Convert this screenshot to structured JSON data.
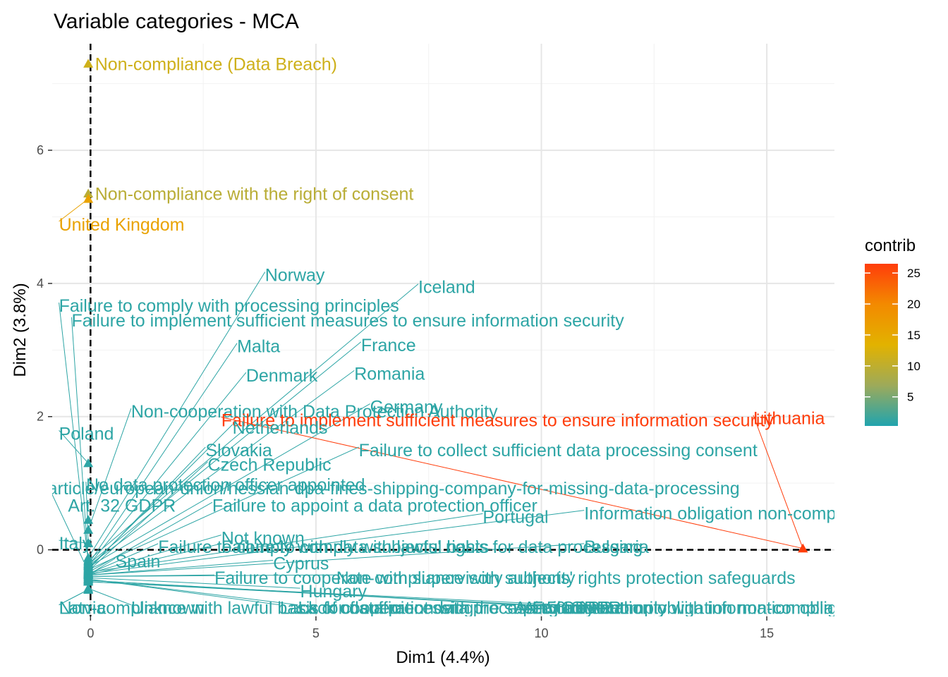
{
  "chart_data": {
    "type": "scatter",
    "title": "Variable categories - MCA",
    "xlabel": "Dim1 (4.4%)",
    "ylabel": "Dim2 (3.8%)",
    "xlim": [
      -0.85,
      16.5
    ],
    "ylim": [
      -1.0,
      7.6
    ],
    "xticks": [
      0,
      5,
      10,
      15
    ],
    "yticks": [
      0,
      2,
      4,
      6
    ],
    "grid": true,
    "legend": {
      "title": "contrib",
      "position": "right",
      "ticks": [
        5,
        10,
        15,
        20,
        25
      ],
      "range": [
        0.3,
        26.5
      ],
      "colors": [
        "#20A4AE",
        "#9DAA5A",
        "#E2B200",
        "#F38A00",
        "#FF3D0B"
      ]
    },
    "ref_lines": {
      "x": 0,
      "y": 0
    },
    "points": [
      {
        "label": "Non-compliance (Data Breach)",
        "x": -0.05,
        "y": 7.3,
        "lx": 0.1,
        "ly": 7.3,
        "contrib": 11.5
      },
      {
        "label": "Non-compliance with the right of consent",
        "x": -0.05,
        "y": 5.35,
        "lx": 0.1,
        "ly": 5.35,
        "contrib": 9.5
      },
      {
        "label": "United Kingdom",
        "x": -0.05,
        "y": 5.27,
        "lx": -0.7,
        "ly": 4.89,
        "contrib": 16.0
      },
      {
        "label": "Norway",
        "x": -0.05,
        "y": -0.12,
        "lx": 3.87,
        "ly": 4.13,
        "contrib": 1.0
      },
      {
        "label": "Iceland",
        "x": -0.05,
        "y": -0.16,
        "lx": 7.27,
        "ly": 3.95,
        "contrib": 1.0
      },
      {
        "label": "Failure to comply with processing principles",
        "x": -0.05,
        "y": -0.18,
        "lx": -0.7,
        "ly": 3.67,
        "contrib": 1.0
      },
      {
        "label": "Failure to implement sufficient measures to ensure information security",
        "x": -0.05,
        "y": -0.2,
        "lx": -0.42,
        "ly": 3.45,
        "contrib": 1.0
      },
      {
        "label": "Malta",
        "x": -0.05,
        "y": -0.22,
        "lx": 3.25,
        "ly": 3.06,
        "contrib": 1.0
      },
      {
        "label": "France",
        "x": -0.05,
        "y": -0.22,
        "lx": 6.0,
        "ly": 3.08,
        "contrib": 1.0
      },
      {
        "label": "Denmark",
        "x": -0.05,
        "y": -0.24,
        "lx": 3.45,
        "ly": 2.62,
        "contrib": 1.0
      },
      {
        "label": "Romania",
        "x": -0.05,
        "y": -0.24,
        "lx": 5.85,
        "ly": 2.65,
        "contrib": 1.0
      },
      {
        "label": "Non-cooperation with Data Protection Authority",
        "x": -0.05,
        "y": 0.3,
        "lx": 0.9,
        "ly": 2.08,
        "contrib": 1.0
      },
      {
        "label": "Germany",
        "x": -0.05,
        "y": -0.26,
        "lx": 6.2,
        "ly": 2.15,
        "contrib": 1.0
      },
      {
        "label": "Failure to implement sufficient measures to ensure information security",
        "x": 15.8,
        "y": 0.02,
        "lx": 2.9,
        "ly": 1.95,
        "contrib": 26.5
      },
      {
        "label": "Lithuania",
        "x": 15.8,
        "y": 0.02,
        "lx": 14.7,
        "ly": 1.98,
        "contrib": 26.5
      },
      {
        "label": "Netherlands",
        "x": -0.05,
        "y": -0.28,
        "lx": 3.15,
        "ly": 1.84,
        "contrib": 1.0
      },
      {
        "label": "Poland",
        "x": -0.05,
        "y": 1.3,
        "lx": -0.7,
        "ly": 1.75,
        "contrib": 1.0
      },
      {
        "label": "Slovakia",
        "x": -0.05,
        "y": -0.3,
        "lx": 2.55,
        "ly": 1.5,
        "contrib": 1.0
      },
      {
        "label": "Failure to collect sufficient data processing consent",
        "x": -0.05,
        "y": -0.3,
        "lx": 5.95,
        "ly": 1.5,
        "contrib": 1.0
      },
      {
        "label": "Czech Republic",
        "x": -0.05,
        "y": -0.32,
        "lx": 2.6,
        "ly": 1.28,
        "contrib": 1.0
      },
      {
        "label": "No data protection officer appointed",
        "x": -0.05,
        "y": 0.1,
        "lx": -0.1,
        "ly": 0.98,
        "contrib": 1.0
      },
      {
        "label": "article/european-union/hessian-dpa-fines-shipping-company-for-missing-data-processing",
        "x": -0.05,
        "y": -0.32,
        "lx": -0.95,
        "ly": 0.93,
        "contrib": 1.0
      },
      {
        "label": "Art. 32 GDPR",
        "x": -0.05,
        "y": 0.45,
        "lx": -0.5,
        "ly": 0.67,
        "contrib": 1.0
      },
      {
        "label": "Failure to appoint a data protection officer",
        "x": -0.05,
        "y": -0.34,
        "lx": 2.7,
        "ly": 0.67,
        "contrib": 1.0
      },
      {
        "label": "Portugal",
        "x": -0.05,
        "y": -0.34,
        "lx": 8.7,
        "ly": 0.5,
        "contrib": 1.0
      },
      {
        "label": "Information obligation non-compliance",
        "x": -0.05,
        "y": -0.36,
        "lx": 10.95,
        "ly": 0.55,
        "contrib": 1.0
      },
      {
        "label": "Not known",
        "x": -0.05,
        "y": -0.36,
        "lx": 2.9,
        "ly": 0.18,
        "contrib": 1.0
      },
      {
        "label": "Italy",
        "x": -0.05,
        "y": 0.1,
        "lx": -0.7,
        "ly": 0.1,
        "contrib": 1.0
      },
      {
        "label": "Failure to comply with data subjects' rights",
        "x": -0.05,
        "y": -0.36,
        "lx": 1.5,
        "ly": 0.05,
        "contrib": 1.0
      },
      {
        "label": "Failure to comply with lawful basis for data processing",
        "x": -0.05,
        "y": -0.38,
        "lx": 2.9,
        "ly": 0.05,
        "contrib": 1.0
      },
      {
        "label": "Bulgaria",
        "x": -0.05,
        "y": -0.38,
        "lx": 10.95,
        "ly": 0.05,
        "contrib": 1.0
      },
      {
        "label": "Spain",
        "x": -0.05,
        "y": -0.38,
        "lx": 0.55,
        "ly": -0.17,
        "contrib": 1.0
      },
      {
        "label": "Cyprus",
        "x": -0.05,
        "y": -0.38,
        "lx": 4.05,
        "ly": -0.2,
        "contrib": 1.0
      },
      {
        "label": "Failure to cooperate with supervisory authority",
        "x": -0.05,
        "y": -0.4,
        "lx": 2.75,
        "ly": -0.42,
        "contrib": 1.0
      },
      {
        "label": "Non-compliance with subjects' rights protection safeguards",
        "x": -0.05,
        "y": -0.4,
        "lx": 5.45,
        "ly": -0.42,
        "contrib": 1.0
      },
      {
        "label": "Hungary",
        "x": -0.05,
        "y": -0.42,
        "lx": 4.65,
        "ly": -0.62,
        "contrib": 1.0
      },
      {
        "label": "Latvia",
        "x": -0.05,
        "y": -0.6,
        "lx": -0.7,
        "ly": -0.87,
        "contrib": 1.0
      },
      {
        "label": "Non-compliance with lawful basis for data processing",
        "x": -0.05,
        "y": -0.6,
        "lx": -0.7,
        "ly": -0.87,
        "contrib": 1.0
      },
      {
        "label": "Unknown",
        "x": -0.05,
        "y": -0.58,
        "lx": 0.9,
        "ly": -0.87,
        "contrib": 1.0
      },
      {
        "label": "Lack of cooperation with the supervisory authority",
        "x": -0.05,
        "y": -0.44,
        "lx": 4.2,
        "ly": -0.87,
        "contrib": 1.0
      },
      {
        "label": "Lack of sufficient data processing consent",
        "x": -0.05,
        "y": -0.44,
        "lx": 4.6,
        "ly": -0.87,
        "contrib": 1.0
      },
      {
        "label": "Art. 5 GDPR",
        "x": -0.05,
        "y": -0.46,
        "lx": 9.4,
        "ly": -0.87,
        "contrib": 1.0
      },
      {
        "label": "Art. 6 GDPR",
        "x": -0.05,
        "y": -0.46,
        "lx": 9.6,
        "ly": -0.87,
        "contrib": 1.0
      },
      {
        "label": "Failure to comply with information obligation",
        "x": -0.05,
        "y": -0.48,
        "lx": 9.8,
        "ly": -0.87,
        "contrib": 1.0
      },
      {
        "label": "Information obligation non-compliance",
        "x": -0.05,
        "y": -0.48,
        "lx": 10.5,
        "ly": -0.87,
        "contrib": 1.0
      }
    ]
  }
}
